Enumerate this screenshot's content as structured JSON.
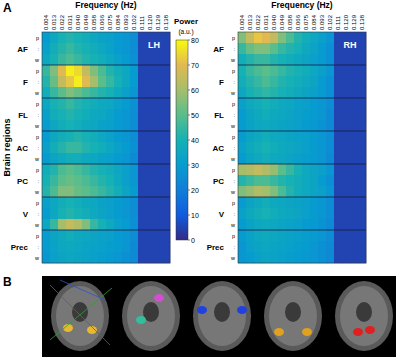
{
  "panels": [
    "A",
    "B"
  ],
  "colorbar": {
    "label": "Power",
    "unit_label": "(a.u.)",
    "range": [
      0,
      80
    ],
    "ticks": [
      0,
      10,
      20,
      30,
      40,
      50,
      60,
      70,
      80
    ]
  },
  "chart_data": [
    {
      "type": "heatmap",
      "title": "LH",
      "x_label": "Frequency (Hz)",
      "y_label": "Brain regions",
      "categories": [
        "0.004",
        "0.013",
        "0.022",
        "0.031",
        "0.040",
        "0.049",
        "0.058",
        "0.066",
        "0.075",
        "0.084",
        "0.093",
        "0.102",
        "0.111",
        "0.120",
        "0.129",
        "0.138"
      ],
      "regions": [
        "AF",
        "F",
        "FL",
        "AC",
        "PC",
        "V",
        "Prec"
      ],
      "y_categories": [
        "p",
        ":",
        "w",
        "p",
        ":",
        "w",
        "p",
        ":",
        "w",
        "p",
        ":",
        "w",
        "p",
        ":",
        "w",
        "p",
        ":",
        "w",
        "p",
        ":",
        "w"
      ],
      "cells": [
        [
          30,
          35,
          40,
          42,
          40,
          38,
          35,
          33,
          32,
          30,
          28,
          25,
          5,
          5,
          5,
          5
        ],
        [
          32,
          38,
          42,
          45,
          42,
          40,
          38,
          35,
          33,
          30,
          28,
          25,
          5,
          5,
          5,
          5
        ],
        [
          35,
          40,
          45,
          48,
          45,
          42,
          40,
          38,
          35,
          32,
          30,
          26,
          5,
          5,
          5,
          5
        ],
        [
          45,
          55,
          70,
          78,
          75,
          65,
          55,
          48,
          42,
          38,
          35,
          30,
          5,
          5,
          5,
          5
        ],
        [
          42,
          52,
          65,
          72,
          78,
          70,
          60,
          50,
          45,
          40,
          35,
          30,
          5,
          5,
          5,
          5
        ],
        [
          38,
          45,
          50,
          55,
          52,
          48,
          45,
          42,
          40,
          36,
          32,
          28,
          5,
          5,
          5,
          5
        ],
        [
          35,
          40,
          42,
          45,
          42,
          40,
          38,
          36,
          35,
          32,
          30,
          26,
          5,
          5,
          5,
          5
        ],
        [
          32,
          38,
          40,
          42,
          40,
          38,
          36,
          35,
          33,
          30,
          28,
          25,
          5,
          5,
          5,
          5
        ],
        [
          30,
          35,
          38,
          40,
          38,
          36,
          35,
          33,
          32,
          30,
          28,
          25,
          5,
          5,
          5,
          5
        ],
        [
          30,
          35,
          38,
          40,
          42,
          40,
          38,
          35,
          33,
          30,
          28,
          25,
          5,
          5,
          5,
          5
        ],
        [
          32,
          38,
          42,
          45,
          45,
          42,
          40,
          38,
          35,
          32,
          30,
          26,
          5,
          5,
          5,
          5
        ],
        [
          30,
          34,
          36,
          38,
          38,
          36,
          35,
          33,
          32,
          30,
          28,
          24,
          5,
          5,
          5,
          5
        ],
        [
          38,
          42,
          48,
          50,
          48,
          45,
          42,
          40,
          38,
          35,
          32,
          28,
          5,
          5,
          5,
          5
        ],
        [
          40,
          45,
          50,
          52,
          50,
          48,
          45,
          42,
          40,
          36,
          32,
          28,
          5,
          5,
          5,
          5
        ],
        [
          42,
          48,
          55,
          55,
          52,
          50,
          48,
          45,
          42,
          38,
          34,
          30,
          5,
          5,
          5,
          5
        ],
        [
          32,
          35,
          38,
          40,
          38,
          36,
          35,
          33,
          32,
          30,
          28,
          25,
          5,
          5,
          5,
          5
        ],
        [
          30,
          35,
          40,
          42,
          40,
          38,
          36,
          34,
          32,
          30,
          28,
          25,
          5,
          5,
          5,
          5
        ],
        [
          35,
          45,
          60,
          65,
          62,
          55,
          45,
          40,
          36,
          32,
          30,
          26,
          5,
          5,
          5,
          5
        ],
        [
          30,
          34,
          36,
          38,
          36,
          35,
          34,
          33,
          32,
          30,
          28,
          25,
          5,
          5,
          5,
          5
        ],
        [
          30,
          33,
          35,
          36,
          35,
          34,
          33,
          32,
          31,
          30,
          28,
          24,
          5,
          5,
          5,
          5
        ],
        [
          28,
          32,
          34,
          35,
          34,
          33,
          32,
          31,
          30,
          28,
          26,
          24,
          5,
          5,
          5,
          5
        ]
      ]
    },
    {
      "type": "heatmap",
      "title": "RH",
      "x_label": "Frequency (Hz)",
      "categories": [
        "0.004",
        "0.013",
        "0.022",
        "0.031",
        "0.040",
        "0.049",
        "0.058",
        "0.066",
        "0.075",
        "0.084",
        "0.093",
        "0.102",
        "0.111",
        "0.120",
        "0.129",
        "0.138"
      ],
      "regions": [
        "AF",
        "F",
        "FL",
        "AC",
        "PC",
        "V",
        "Prec"
      ],
      "y_categories": [
        "p",
        ":",
        "w",
        "p",
        ":",
        "w",
        "p",
        ":",
        "w",
        "p",
        ":",
        "w",
        "p",
        ":",
        "w",
        "p",
        ":",
        "w",
        "p",
        ":",
        "w"
      ],
      "cells": [
        [
          55,
          65,
          72,
          70,
          65,
          55,
          48,
          42,
          38,
          35,
          32,
          28,
          5,
          5,
          5,
          5
        ],
        [
          45,
          52,
          55,
          55,
          50,
          45,
          42,
          40,
          36,
          34,
          30,
          26,
          5,
          5,
          5,
          5
        ],
        [
          38,
          42,
          45,
          45,
          42,
          40,
          38,
          36,
          34,
          32,
          30,
          26,
          5,
          5,
          5,
          5
        ],
        [
          40,
          45,
          48,
          50,
          48,
          45,
          42,
          40,
          38,
          35,
          32,
          28,
          5,
          5,
          5,
          5
        ],
        [
          38,
          42,
          45,
          48,
          45,
          42,
          40,
          38,
          36,
          34,
          30,
          26,
          5,
          5,
          5,
          5
        ],
        [
          35,
          40,
          42,
          44,
          42,
          40,
          38,
          36,
          34,
          32,
          30,
          26,
          5,
          5,
          5,
          5
        ],
        [
          32,
          36,
          38,
          40,
          38,
          36,
          35,
          33,
          32,
          30,
          28,
          25,
          5,
          5,
          5,
          5
        ],
        [
          30,
          34,
          36,
          38,
          36,
          35,
          34,
          32,
          31,
          30,
          28,
          24,
          5,
          5,
          5,
          5
        ],
        [
          30,
          33,
          35,
          36,
          35,
          34,
          33,
          32,
          30,
          29,
          27,
          24,
          5,
          5,
          5,
          5
        ],
        [
          30,
          34,
          36,
          38,
          36,
          35,
          34,
          33,
          32,
          30,
          28,
          25,
          5,
          5,
          5,
          5
        ],
        [
          32,
          36,
          38,
          40,
          38,
          36,
          35,
          34,
          32,
          30,
          28,
          25,
          5,
          5,
          5,
          5
        ],
        [
          30,
          34,
          36,
          38,
          36,
          35,
          34,
          32,
          31,
          30,
          28,
          24,
          5,
          5,
          5,
          5
        ],
        [
          60,
          62,
          65,
          62,
          58,
          50,
          45,
          40,
          36,
          34,
          32,
          28,
          5,
          5,
          5,
          5
        ],
        [
          42,
          45,
          48,
          48,
          45,
          42,
          40,
          38,
          36,
          34,
          30,
          26,
          5,
          5,
          5,
          5
        ],
        [
          55,
          58,
          62,
          60,
          55,
          48,
          42,
          38,
          36,
          34,
          32,
          28,
          5,
          5,
          5,
          5
        ],
        [
          30,
          34,
          36,
          38,
          36,
          35,
          34,
          33,
          32,
          30,
          28,
          25,
          5,
          5,
          5,
          5
        ],
        [
          32,
          36,
          38,
          40,
          38,
          36,
          35,
          34,
          32,
          30,
          28,
          25,
          5,
          5,
          5,
          5
        ],
        [
          30,
          33,
          35,
          36,
          35,
          34,
          33,
          32,
          30,
          29,
          27,
          24,
          5,
          5,
          5,
          5
        ],
        [
          30,
          33,
          35,
          36,
          35,
          34,
          33,
          32,
          31,
          30,
          28,
          25,
          5,
          5,
          5,
          5
        ],
        [
          28,
          32,
          34,
          35,
          34,
          33,
          32,
          31,
          30,
          28,
          26,
          24,
          5,
          5,
          5,
          5
        ],
        [
          28,
          30,
          32,
          34,
          33,
          32,
          31,
          30,
          29,
          28,
          26,
          24,
          5,
          5,
          5,
          5
        ]
      ]
    }
  ]
}
